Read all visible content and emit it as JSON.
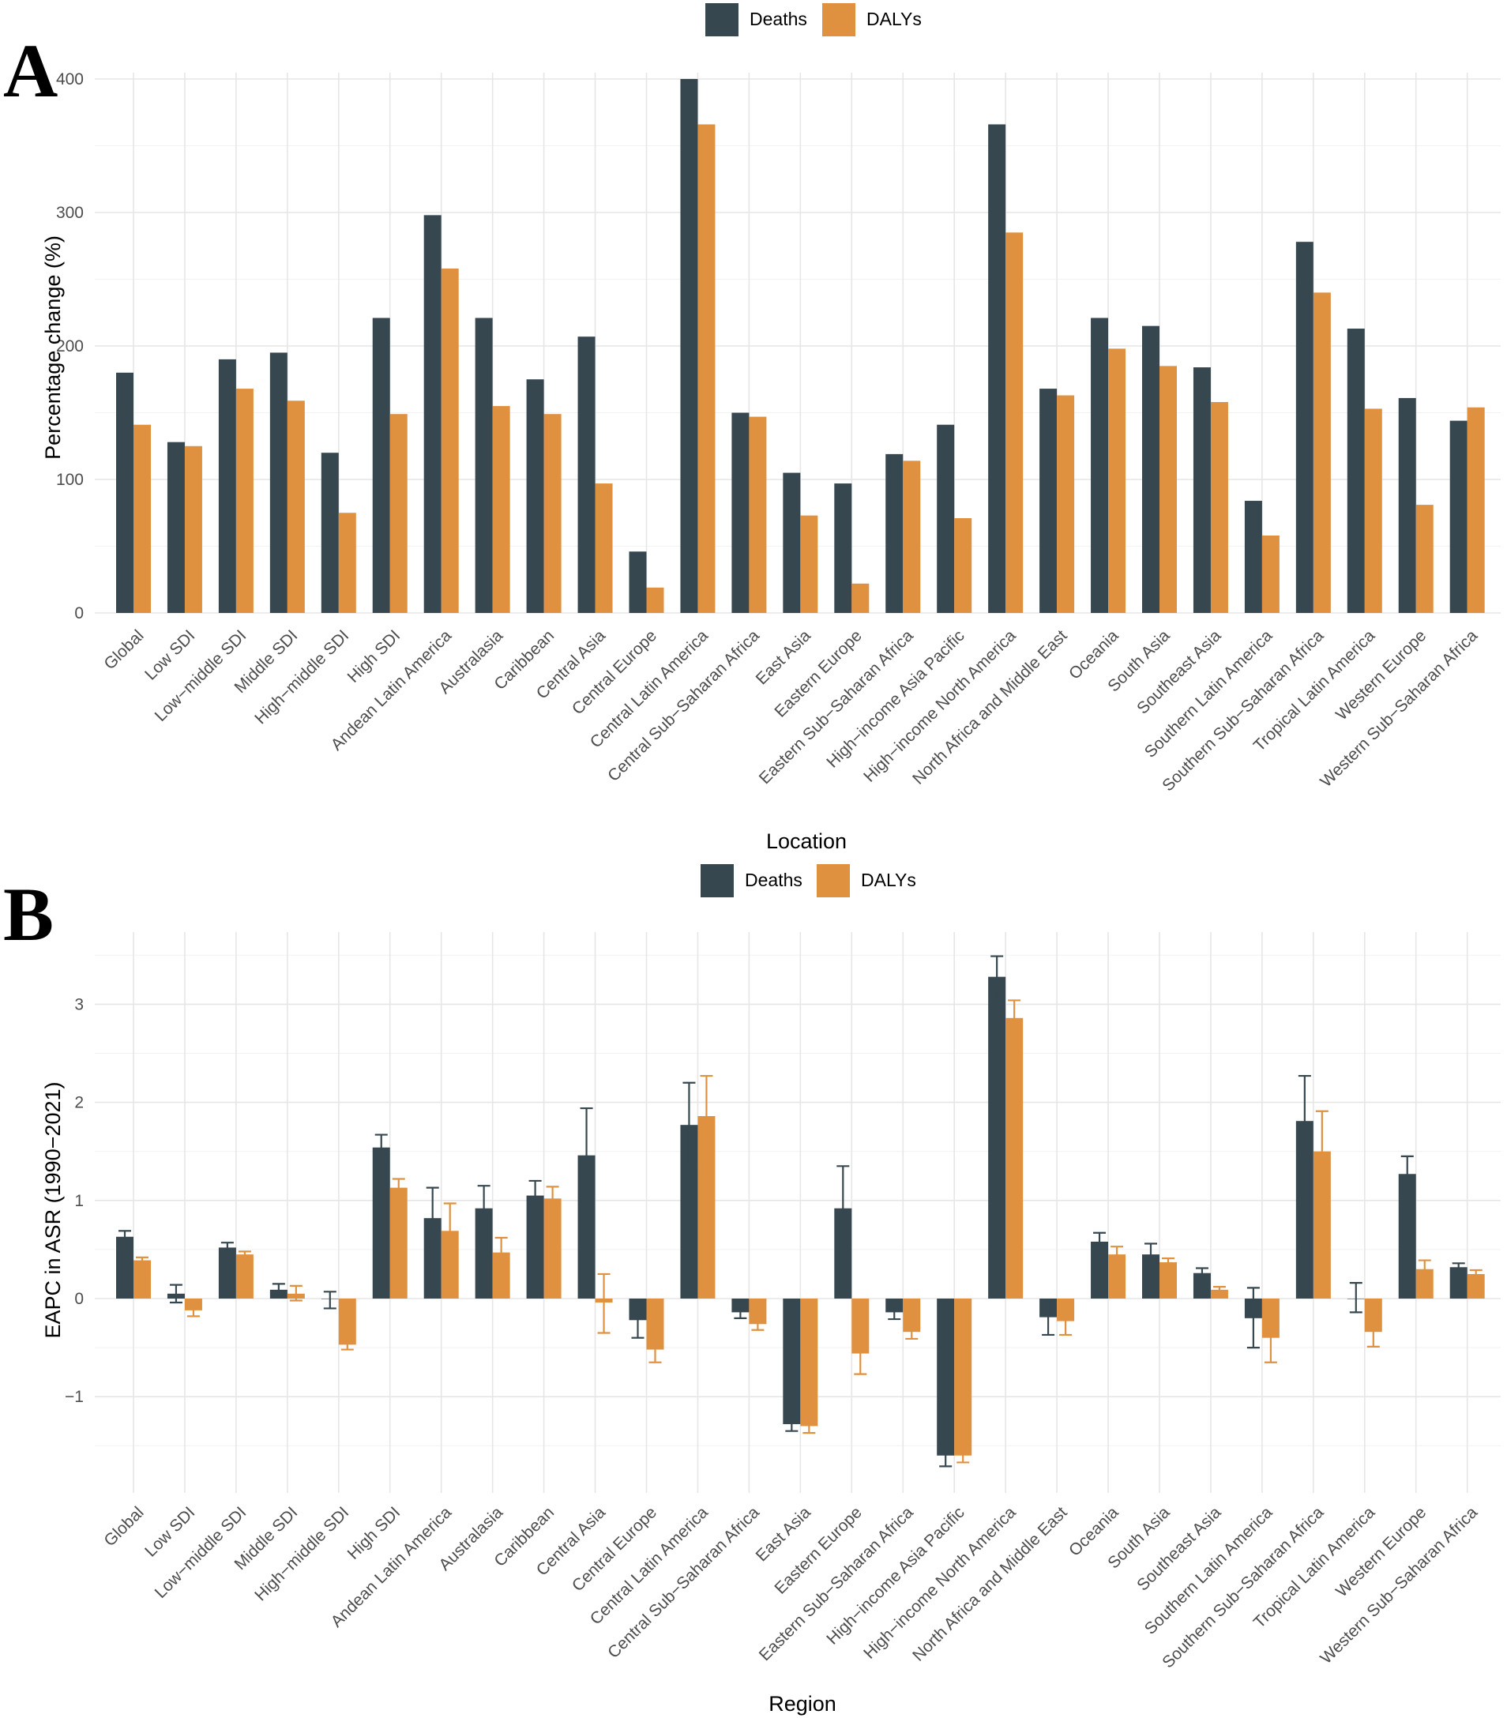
{
  "colors": {
    "deaths": "#36474f",
    "dalys": "#e0913f"
  },
  "chart_data": [
    {
      "panel": "A",
      "type": "bar",
      "title": "",
      "xlabel": "Location",
      "ylabel": "Percentage change (%)",
      "ylim": [
        0,
        400
      ],
      "yticks": [
        0,
        100,
        200,
        300,
        400
      ],
      "legend": {
        "position": "top",
        "entries": [
          "Deaths",
          "DALYs"
        ]
      },
      "categories": [
        "Global",
        "Low SDI",
        "Low−middle SDI",
        "Middle SDI",
        "High−middle SDI",
        "High SDI",
        "Andean Latin America",
        "Australasia",
        "Caribbean",
        "Central Asia",
        "Central Europe",
        "Central Latin America",
        "Central Sub−Saharan Africa",
        "East Asia",
        "Eastern Europe",
        "Eastern Sub−Saharan Africa",
        "High−income Asia Pacific",
        "High−income North America",
        "North Africa and Middle East",
        "Oceania",
        "South Asia",
        "Southeast Asia",
        "Southern Latin America",
        "Southern Sub−Saharan Africa",
        "Tropical Latin America",
        "Western Europe",
        "Western Sub−Saharan Africa"
      ],
      "series": [
        {
          "name": "Deaths",
          "values": [
            180,
            128,
            190,
            195,
            120,
            221,
            298,
            221,
            175,
            207,
            46,
            400,
            150,
            105,
            97,
            119,
            141,
            366,
            168,
            221,
            215,
            184,
            84,
            278,
            213,
            161,
            144
          ]
        },
        {
          "name": "DALYs",
          "values": [
            141,
            125,
            168,
            159,
            75,
            149,
            258,
            155,
            149,
            97,
            19,
            366,
            147,
            73,
            22,
            114,
            71,
            285,
            163,
            198,
            185,
            158,
            58,
            240,
            153,
            81,
            154
          ]
        }
      ]
    },
    {
      "panel": "B",
      "type": "bar",
      "title": "",
      "xlabel": "Region",
      "ylabel": "EAPC in ASR (1990−2021)",
      "ylim": [
        -1.9,
        3.7
      ],
      "yticks": [
        -1,
        0,
        1,
        2,
        3
      ],
      "ytick_labels": [
        "−1",
        "0",
        "1",
        "2",
        "3"
      ],
      "legend": {
        "position": "top",
        "entries": [
          "Deaths",
          "DALYs"
        ]
      },
      "categories": [
        "Global",
        "Low SDI",
        "Low−middle SDI",
        "Middle SDI",
        "High−middle SDI",
        "High SDI",
        "Andean Latin America",
        "Australasia",
        "Caribbean",
        "Central Asia",
        "Central Europe",
        "Central Latin America",
        "Central Sub−Saharan Africa",
        "East Asia",
        "Eastern Europe",
        "Eastern Sub−Saharan Africa",
        "High−income Asia Pacific",
        "High−income North America",
        "North Africa and Middle East",
        "Oceania",
        "South Asia",
        "Southeast Asia",
        "Southern Latin America",
        "Southern Sub−Saharan Africa",
        "Tropical Latin America",
        "Western Europe",
        "Western Sub−Saharan Africa"
      ],
      "series": [
        {
          "name": "Deaths",
          "values": [
            0.63,
            0.05,
            0.52,
            0.09,
            0.0,
            1.54,
            0.82,
            0.92,
            1.05,
            1.46,
            -0.22,
            1.77,
            -0.14,
            -1.28,
            0.92,
            -0.14,
            -1.6,
            3.28,
            -0.19,
            0.58,
            0.45,
            0.26,
            -0.2,
            1.81,
            0.0,
            1.27,
            0.32
          ],
          "err_low": [
            0.58,
            -0.04,
            0.47,
            0.03,
            -0.1,
            1.43,
            0.52,
            0.69,
            0.91,
            0.97,
            -0.4,
            1.35,
            -0.2,
            -1.35,
            0.5,
            -0.21,
            -1.71,
            3.07,
            -0.37,
            0.5,
            0.35,
            0.21,
            -0.5,
            1.36,
            -0.14,
            1.08,
            0.28
          ],
          "err_high": [
            0.69,
            0.14,
            0.57,
            0.15,
            0.07,
            1.67,
            1.13,
            1.15,
            1.2,
            1.94,
            -0.05,
            2.2,
            -0.08,
            -1.22,
            1.35,
            -0.08,
            -1.5,
            3.49,
            -0.01,
            0.67,
            0.56,
            0.31,
            0.11,
            2.27,
            0.16,
            1.45,
            0.36
          ]
        },
        {
          "name": "DALYs",
          "values": [
            0.39,
            -0.12,
            0.45,
            0.05,
            -0.47,
            1.13,
            0.69,
            0.47,
            1.02,
            -0.04,
            -0.52,
            1.86,
            -0.26,
            -1.3,
            -0.56,
            -0.34,
            -1.6,
            2.86,
            -0.23,
            0.45,
            0.37,
            0.09,
            -0.4,
            1.5,
            -0.34,
            0.3,
            0.25
          ],
          "err_low": [
            0.35,
            -0.18,
            0.41,
            -0.02,
            -0.52,
            1.04,
            0.41,
            0.33,
            0.91,
            -0.35,
            -0.65,
            1.45,
            -0.32,
            -1.37,
            -0.77,
            -0.41,
            -1.67,
            2.67,
            -0.37,
            0.39,
            0.33,
            0.06,
            -0.65,
            1.09,
            -0.49,
            0.22,
            0.21
          ],
          "err_high": [
            0.42,
            -0.06,
            0.48,
            0.13,
            -0.42,
            1.22,
            0.97,
            0.62,
            1.14,
            0.25,
            -0.38,
            2.27,
            -0.2,
            -1.24,
            -0.35,
            -0.27,
            -1.53,
            3.04,
            -0.09,
            0.53,
            0.41,
            0.12,
            -0.15,
            1.91,
            -0.19,
            0.39,
            0.29
          ]
        }
      ]
    }
  ],
  "panel_labels": [
    "A",
    "B"
  ]
}
